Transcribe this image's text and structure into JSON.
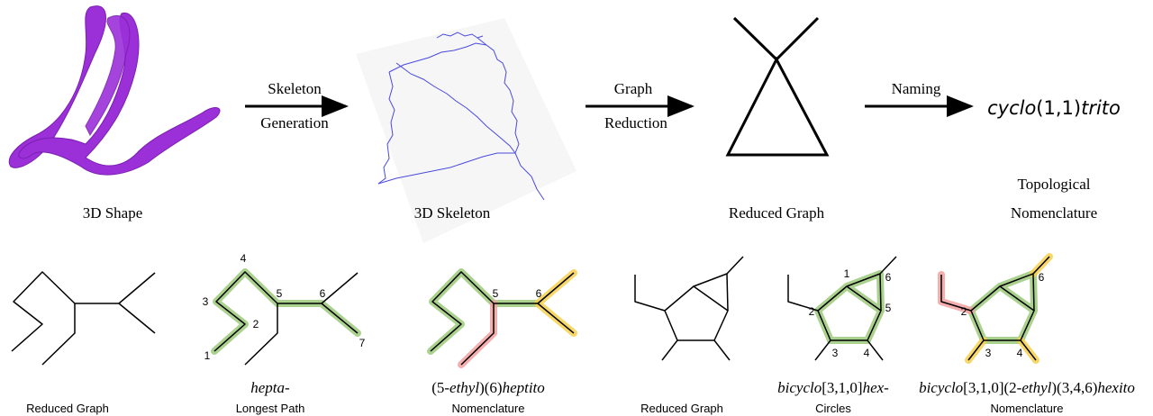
{
  "top": {
    "stages": [
      {
        "caption": "3D Shape"
      },
      {
        "caption": "3D Skeleton"
      },
      {
        "caption": "Reduced Graph"
      },
      {
        "name_parts": [
          "cyclo",
          "(1,1)",
          "trito"
        ],
        "caption_lines": [
          "Topological",
          "Nomenclature"
        ]
      }
    ],
    "arrows": [
      [
        "Skeleton",
        "Generation"
      ],
      [
        "Graph",
        "Reduction"
      ],
      [
        "Naming"
      ]
    ]
  },
  "bottom": {
    "panels": [
      {
        "caption": "Reduced Graph"
      },
      {
        "name_parts": [
          "hepta",
          "-"
        ],
        "caption": "Longest Path",
        "node_labels": [
          1,
          2,
          3,
          4,
          5,
          6,
          7
        ]
      },
      {
        "name_parts": [
          "(5-",
          "ethyl",
          ")(6)",
          "heptito"
        ],
        "caption": "Nomenclature",
        "node_labels": [
          5,
          6
        ]
      },
      {
        "caption": "Reduced Graph"
      },
      {
        "name_parts": [
          "bicyclo",
          "[3,1,0]",
          "hex",
          "-"
        ],
        "caption": "Circles",
        "node_labels": [
          1,
          2,
          3,
          4,
          5,
          6
        ]
      },
      {
        "name_parts": [
          "bicyclo",
          "[3,1,0](2-",
          "ethyl",
          ")(3,4,6)",
          "hexito"
        ],
        "caption": "Nomenclature",
        "node_labels": [
          2,
          3,
          4,
          6
        ]
      }
    ]
  }
}
